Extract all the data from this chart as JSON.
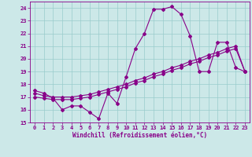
{
  "xlabel": "Windchill (Refroidissement éolien,°C)",
  "bg_color": "#cce8e8",
  "line_color": "#880088",
  "grid_color": "#99cccc",
  "xlim": [
    -0.5,
    23.5
  ],
  "ylim": [
    15,
    24.5
  ],
  "xticks": [
    0,
    1,
    2,
    3,
    4,
    5,
    6,
    7,
    8,
    9,
    10,
    11,
    12,
    13,
    14,
    15,
    16,
    17,
    18,
    19,
    20,
    21,
    22,
    23
  ],
  "yticks": [
    15,
    16,
    17,
    18,
    19,
    20,
    21,
    22,
    23,
    24
  ],
  "line1_x": [
    0,
    1,
    2,
    3,
    4,
    5,
    6,
    7,
    8,
    9,
    10,
    11,
    12,
    13,
    14,
    15,
    16,
    17,
    18,
    19,
    20,
    21,
    22,
    23
  ],
  "line1_y": [
    17.5,
    17.3,
    16.9,
    16.0,
    16.3,
    16.3,
    15.8,
    15.3,
    17.3,
    16.5,
    18.6,
    20.8,
    22.0,
    23.9,
    23.9,
    24.1,
    23.5,
    21.8,
    19.0,
    19.0,
    21.3,
    21.3,
    19.3,
    19.0
  ],
  "line2_x": [
    0,
    1,
    2,
    3,
    4,
    5,
    6,
    7,
    8,
    9,
    10,
    11,
    12,
    13,
    14,
    15,
    16,
    17,
    18,
    19,
    20,
    21,
    22,
    23
  ],
  "line2_y": [
    17.3,
    17.1,
    17.0,
    17.0,
    17.0,
    17.1,
    17.2,
    17.4,
    17.6,
    17.8,
    18.0,
    18.3,
    18.5,
    18.8,
    19.0,
    19.3,
    19.5,
    19.8,
    20.0,
    20.3,
    20.5,
    20.8,
    21.0,
    19.0
  ],
  "line3_x": [
    0,
    1,
    2,
    3,
    4,
    5,
    6,
    7,
    8,
    9,
    10,
    11,
    12,
    13,
    14,
    15,
    16,
    17,
    18,
    19,
    20,
    21,
    22,
    23
  ],
  "line3_y": [
    17.0,
    16.9,
    16.8,
    16.8,
    16.8,
    16.9,
    17.0,
    17.2,
    17.4,
    17.6,
    17.8,
    18.1,
    18.3,
    18.6,
    18.8,
    19.1,
    19.3,
    19.6,
    19.8,
    20.1,
    20.3,
    20.6,
    20.8,
    19.0
  ],
  "marker": "D",
  "marker_size": 2.0,
  "linewidth": 0.8,
  "tick_fontsize": 5.0,
  "label_fontsize": 5.5
}
